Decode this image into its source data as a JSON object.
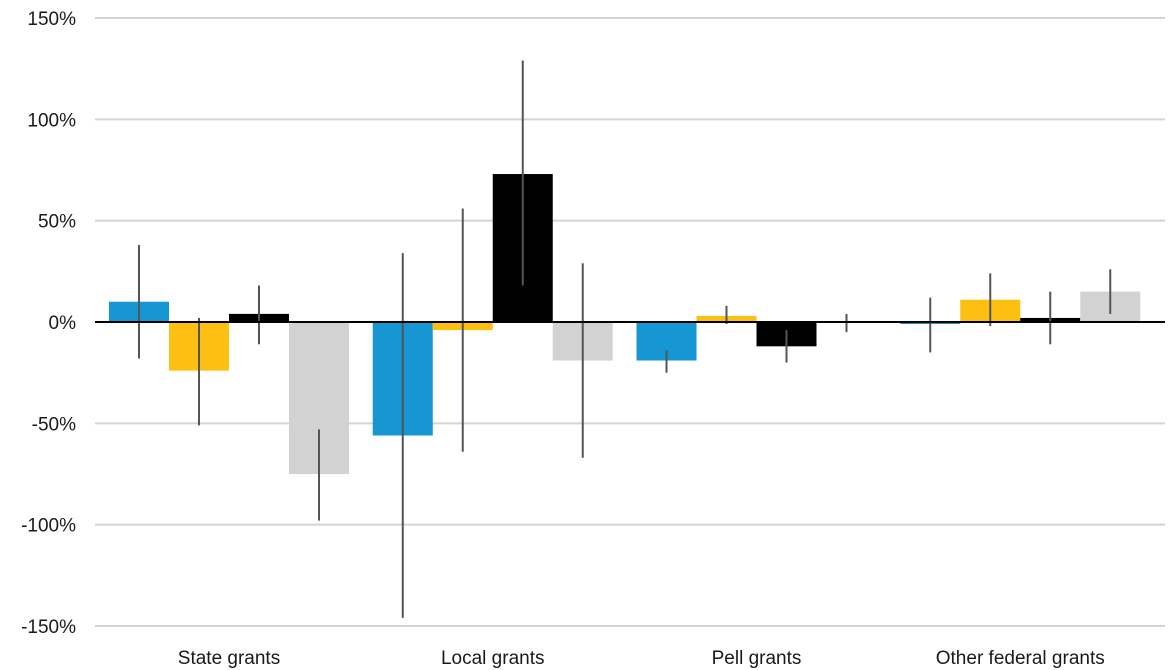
{
  "chart_data": {
    "type": "bar",
    "categories": [
      "State grants",
      "Local grants",
      "Pell grants",
      "Other federal grants"
    ],
    "series": [
      {
        "color": "#1696d2",
        "values": [
          10,
          -56,
          -19,
          -1
        ],
        "error_low": [
          -18,
          -146,
          -25,
          -15
        ],
        "error_high": [
          38,
          34,
          -14,
          12
        ]
      },
      {
        "color": "#fdbf11",
        "values": [
          -24,
          -4,
          3,
          11
        ],
        "error_low": [
          -51,
          -64,
          -1,
          -2
        ],
        "error_high": [
          2,
          56,
          8,
          24
        ]
      },
      {
        "color": "#000000",
        "values": [
          4,
          73,
          -12,
          2
        ],
        "error_low": [
          -11,
          18,
          -20,
          -11
        ],
        "error_high": [
          18,
          129,
          -4,
          15
        ]
      },
      {
        "color": "#d2d2d2",
        "values": [
          -75,
          -19,
          0,
          15
        ],
        "error_low": [
          -98,
          -67,
          -5,
          4
        ],
        "error_high": [
          -53,
          29,
          4,
          26
        ]
      }
    ],
    "yticks": [
      150,
      100,
      50,
      0,
      -50,
      -100,
      -150
    ],
    "ytick_labels": [
      "150%",
      "100%",
      "50%",
      "0%",
      "-50%",
      "-100%",
      "-150%"
    ],
    "ylim": [
      -150,
      150
    ],
    "grid": true,
    "legend": "none"
  }
}
